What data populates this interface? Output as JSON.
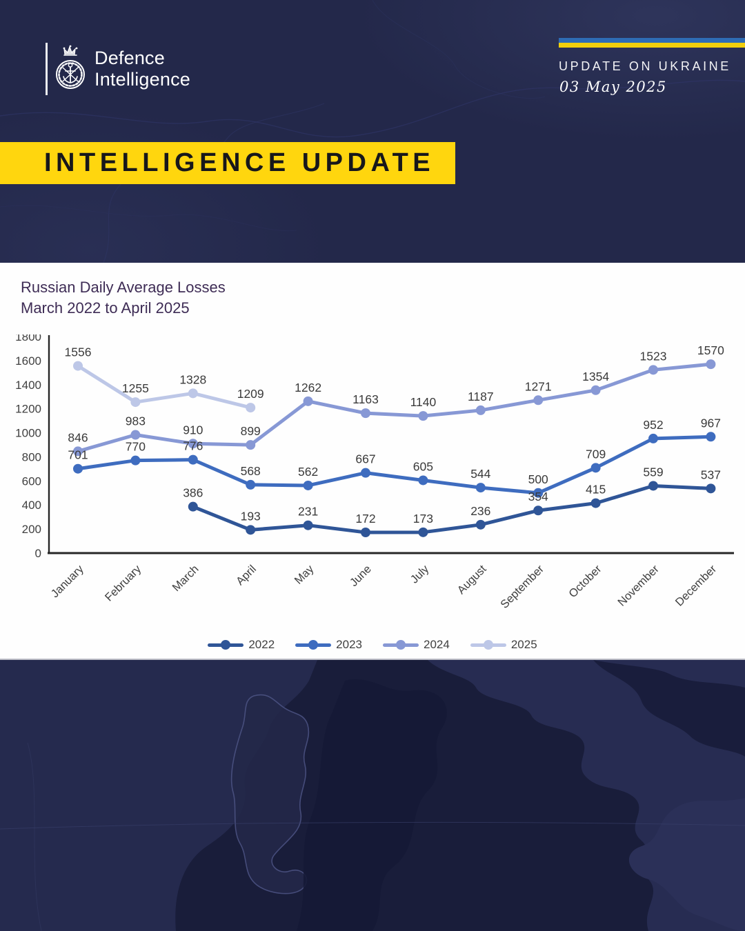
{
  "header": {
    "logo_line1": "Defence",
    "logo_line2": "Intelligence",
    "kicker": "UPDATE ON UKRAINE",
    "date": "03 May 2025",
    "flag_blue": "#2e6cb5",
    "flag_yellow": "#f2cf0c"
  },
  "banner": {
    "label": "INTELLIGENCE UPDATE",
    "bg": "#ffd60e"
  },
  "chart_data": {
    "type": "line",
    "title": "Russian Daily Average Losses",
    "subtitle": "March 2022 to April 2025",
    "categories": [
      "January",
      "February",
      "March",
      "April",
      "May",
      "June",
      "July",
      "August",
      "September",
      "October",
      "November",
      "December"
    ],
    "ylim": [
      0,
      1800
    ],
    "ytick_step": 200,
    "yticks": [
      0,
      200,
      400,
      600,
      800,
      1000,
      1200,
      1400,
      1600,
      1800
    ],
    "grid": false,
    "legend_position": "bottom",
    "data_labels": true,
    "series": [
      {
        "name": "2022",
        "color": "#2f5597",
        "values": [
          null,
          null,
          386,
          193,
          231,
          172,
          173,
          236,
          354,
          415,
          559,
          537
        ]
      },
      {
        "name": "2023",
        "color": "#3e6cbf",
        "values": [
          701,
          770,
          776,
          568,
          562,
          667,
          605,
          544,
          500,
          709,
          952,
          967
        ]
      },
      {
        "name": "2024",
        "color": "#8798d5",
        "values": [
          846,
          983,
          910,
          899,
          1262,
          1163,
          1140,
          1187,
          1271,
          1354,
          1523,
          1570
        ]
      },
      {
        "name": "2025",
        "color": "#bdc7e7",
        "values": [
          1556,
          1255,
          1328,
          1209,
          null,
          null,
          null,
          null,
          null,
          null,
          null,
          null
        ]
      }
    ]
  },
  "colors": {
    "axis": "#262626",
    "tick_text": "#3f3f3f",
    "data_label": "#3a3a3a"
  }
}
